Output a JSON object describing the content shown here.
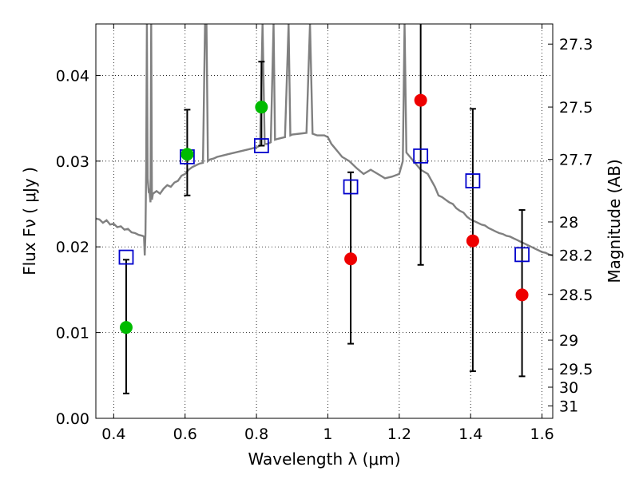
{
  "chart_data": {
    "type": "scatter",
    "xlabel": "Wavelength  λ (μm)",
    "ylabel": "Flux  Fν  ( μJy )",
    "ylabel_right": "Magnitude (AB)",
    "xlim": [
      0.35,
      1.63
    ],
    "ylim": [
      0.0,
      0.046
    ],
    "grid": true,
    "x_ticks": [
      {
        "value": 0.4,
        "label": "0.4"
      },
      {
        "value": 0.6,
        "label": "0.6"
      },
      {
        "value": 0.8,
        "label": "0.8"
      },
      {
        "value": 1.0,
        "label": "1"
      },
      {
        "value": 1.2,
        "label": "1.2"
      },
      {
        "value": 1.4,
        "label": "1.4"
      },
      {
        "value": 1.6,
        "label": "1.6"
      }
    ],
    "y_ticks": [
      {
        "value": 0.0,
        "label": "0.00"
      },
      {
        "value": 0.01,
        "label": "0.01"
      },
      {
        "value": 0.02,
        "label": "0.02"
      },
      {
        "value": 0.03,
        "label": "0.03"
      },
      {
        "value": 0.04,
        "label": "0.04"
      }
    ],
    "y_right_ticks": [
      {
        "value": 27.3,
        "label": "27.3"
      },
      {
        "value": 27.5,
        "label": "27.5"
      },
      {
        "value": 27.7,
        "label": "27.7"
      },
      {
        "value": 28.0,
        "label": "28"
      },
      {
        "value": 28.2,
        "label": "28.2"
      },
      {
        "value": 28.5,
        "label": "28.5"
      },
      {
        "value": 29.0,
        "label": "29"
      },
      {
        "value": 29.5,
        "label": "29.5"
      },
      {
        "value": 30.0,
        "label": "30"
      },
      {
        "value": 31.0,
        "label": "31"
      }
    ],
    "model_spectrum": {
      "color": "#808080",
      "points": [
        [
          0.35,
          0.0233
        ],
        [
          0.36,
          0.0232
        ],
        [
          0.37,
          0.0228
        ],
        [
          0.38,
          0.0231
        ],
        [
          0.39,
          0.0226
        ],
        [
          0.4,
          0.0227
        ],
        [
          0.41,
          0.0223
        ],
        [
          0.42,
          0.0224
        ],
        [
          0.43,
          0.022
        ],
        [
          0.44,
          0.0221
        ],
        [
          0.45,
          0.0217
        ],
        [
          0.46,
          0.0216
        ],
        [
          0.47,
          0.0214
        ],
        [
          0.48,
          0.0213
        ],
        [
          0.485,
          0.0212
        ],
        [
          0.487,
          0.019
        ],
        [
          0.489,
          0.0215
        ],
        [
          0.491,
          0.029
        ],
        [
          0.493,
          0.046
        ],
        [
          0.495,
          0.028
        ],
        [
          0.498,
          0.0265
        ],
        [
          0.5,
          0.0266
        ],
        [
          0.503,
          0.0252
        ],
        [
          0.505,
          0.046
        ],
        [
          0.507,
          0.0255
        ],
        [
          0.51,
          0.0262
        ],
        [
          0.52,
          0.0265
        ],
        [
          0.53,
          0.0262
        ],
        [
          0.54,
          0.0268
        ],
        [
          0.55,
          0.0272
        ],
        [
          0.56,
          0.027
        ],
        [
          0.57,
          0.0275
        ],
        [
          0.58,
          0.0277
        ],
        [
          0.59,
          0.0283
        ],
        [
          0.6,
          0.0285
        ],
        [
          0.61,
          0.029
        ],
        [
          0.62,
          0.0293
        ],
        [
          0.63,
          0.0295
        ],
        [
          0.64,
          0.0297
        ],
        [
          0.65,
          0.0298
        ],
        [
          0.656,
          0.046
        ],
        [
          0.66,
          0.046
        ],
        [
          0.664,
          0.03
        ],
        [
          0.67,
          0.0302
        ],
        [
          0.68,
          0.0303
        ],
        [
          0.69,
          0.0305
        ],
        [
          0.7,
          0.0306
        ],
        [
          0.72,
          0.0308
        ],
        [
          0.74,
          0.031
        ],
        [
          0.76,
          0.0312
        ],
        [
          0.78,
          0.0314
        ],
        [
          0.8,
          0.0316
        ],
        [
          0.81,
          0.0318
        ],
        [
          0.817,
          0.046
        ],
        [
          0.823,
          0.032
        ],
        [
          0.83,
          0.032
        ],
        [
          0.84,
          0.0322
        ],
        [
          0.848,
          0.046
        ],
        [
          0.852,
          0.0325
        ],
        [
          0.86,
          0.0326
        ],
        [
          0.87,
          0.0327
        ],
        [
          0.88,
          0.0328
        ],
        [
          0.89,
          0.046
        ],
        [
          0.895,
          0.033
        ],
        [
          0.9,
          0.0331
        ],
        [
          0.92,
          0.0332
        ],
        [
          0.94,
          0.0333
        ],
        [
          0.95,
          0.046
        ],
        [
          0.957,
          0.0332
        ],
        [
          0.97,
          0.033
        ],
        [
          0.99,
          0.033
        ],
        [
          1.0,
          0.0328
        ],
        [
          1.01,
          0.032
        ],
        [
          1.02,
          0.0315
        ],
        [
          1.03,
          0.031
        ],
        [
          1.04,
          0.0305
        ],
        [
          1.06,
          0.03
        ],
        [
          1.08,
          0.0292
        ],
        [
          1.1,
          0.0285
        ],
        [
          1.12,
          0.029
        ],
        [
          1.14,
          0.0285
        ],
        [
          1.16,
          0.028
        ],
        [
          1.18,
          0.0282
        ],
        [
          1.2,
          0.0285
        ],
        [
          1.21,
          0.03
        ],
        [
          1.215,
          0.046
        ],
        [
          1.22,
          0.031
        ],
        [
          1.23,
          0.0305
        ],
        [
          1.24,
          0.03
        ],
        [
          1.26,
          0.029
        ],
        [
          1.28,
          0.0285
        ],
        [
          1.3,
          0.027
        ],
        [
          1.31,
          0.026
        ],
        [
          1.32,
          0.0258
        ],
        [
          1.33,
          0.0255
        ],
        [
          1.34,
          0.0252
        ],
        [
          1.35,
          0.025
        ],
        [
          1.36,
          0.0245
        ],
        [
          1.37,
          0.0242
        ],
        [
          1.38,
          0.024
        ],
        [
          1.39,
          0.0235
        ],
        [
          1.4,
          0.0232
        ],
        [
          1.41,
          0.023
        ],
        [
          1.42,
          0.0228
        ],
        [
          1.43,
          0.0226
        ],
        [
          1.44,
          0.0225
        ],
        [
          1.45,
          0.0222
        ],
        [
          1.46,
          0.022
        ],
        [
          1.47,
          0.0218
        ],
        [
          1.48,
          0.0216
        ],
        [
          1.49,
          0.0215
        ],
        [
          1.5,
          0.0213
        ],
        [
          1.51,
          0.0212
        ],
        [
          1.52,
          0.021
        ],
        [
          1.53,
          0.0208
        ],
        [
          1.54,
          0.0206
        ],
        [
          1.55,
          0.0204
        ],
        [
          1.56,
          0.0202
        ],
        [
          1.57,
          0.02
        ],
        [
          1.58,
          0.0198
        ],
        [
          1.59,
          0.0196
        ],
        [
          1.6,
          0.0194
        ],
        [
          1.61,
          0.0193
        ],
        [
          1.62,
          0.0191
        ],
        [
          1.63,
          0.019
        ]
      ]
    },
    "observed_points": [
      {
        "x": 0.435,
        "y": 0.0188,
        "err_low": 0.0029,
        "err_high": 0.0185
      },
      {
        "x": 0.606,
        "y": 0.0305,
        "err_low": 0.026,
        "err_high": 0.036
      },
      {
        "x": 0.814,
        "y": 0.0318,
        "err_low": 0.0318,
        "err_high": 0.0416
      },
      {
        "x": 1.064,
        "y": 0.027,
        "err_low": 0.0087,
        "err_high": 0.0287
      },
      {
        "x": 1.26,
        "y": 0.0306,
        "err_low": 0.0179,
        "err_high": 0.046
      },
      {
        "x": 1.406,
        "y": 0.0277,
        "err_low": 0.0055,
        "err_high": 0.0361
      },
      {
        "x": 1.544,
        "y": 0.0191,
        "err_low": 0.0049,
        "err_high": 0.0243
      }
    ],
    "model_points_green": [
      {
        "x": 0.435,
        "y": 0.0106
      },
      {
        "x": 0.606,
        "y": 0.0308
      },
      {
        "x": 0.814,
        "y": 0.0363
      }
    ],
    "model_points_red": [
      {
        "x": 1.064,
        "y": 0.0186
      },
      {
        "x": 1.26,
        "y": 0.0371
      },
      {
        "x": 1.406,
        "y": 0.0207
      },
      {
        "x": 1.544,
        "y": 0.0144
      }
    ],
    "colors": {
      "spectrum": "#808080",
      "observed_marker": "#0000cc",
      "green_marker": "#00bb00",
      "red_marker": "#ee0000",
      "errorbar": "#000000",
      "grid": "#000000"
    }
  }
}
